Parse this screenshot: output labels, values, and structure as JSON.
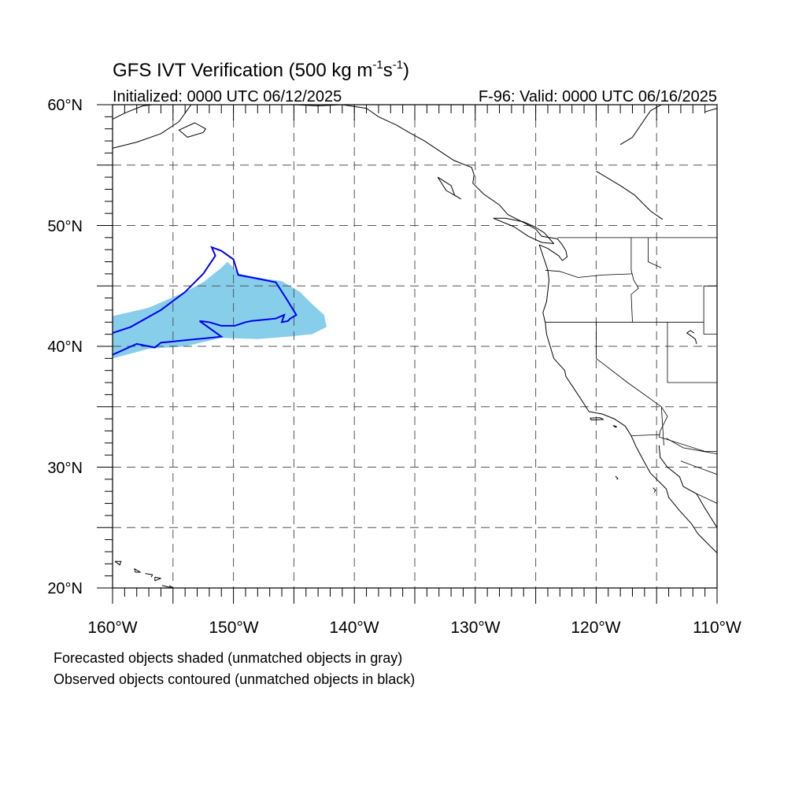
{
  "title": {
    "main": "GFS IVT Verification (500 kg m",
    "sup1": "-1",
    "mid": "s",
    "sup2": "-1",
    "end": ")"
  },
  "initialized": "Initialized: 0000 UTC 06/12/2025",
  "valid": "F-96: Valid: 0000 UTC 06/16/2025",
  "lat_labels": [
    "60°N",
    "50°N",
    "40°N",
    "30°N",
    "20°N"
  ],
  "lon_labels": [
    "160°W",
    "150°W",
    "140°W",
    "130°W",
    "120°W",
    "110°W"
  ],
  "legend": {
    "line1": "Forecasted objects shaded (unmatched objects in gray)",
    "line2": "Observed objects contoured (unmatched objects in black)"
  },
  "map_extent": {
    "lon_min": -160,
    "lon_max": -110,
    "lat_min": 20,
    "lat_max": 60
  },
  "colors": {
    "forecast_fill": "#87ceeb",
    "observed_contour": "#0000ee",
    "coastline": "#000000",
    "grid": "#555555"
  },
  "forecast_object": [
    [
      -160,
      42.5
    ],
    [
      -157,
      43.2
    ],
    [
      -154,
      44.5
    ],
    [
      -152.5,
      45.3
    ],
    [
      -151,
      46.5
    ],
    [
      -150.5,
      47
    ],
    [
      -149.5,
      46
    ],
    [
      -147.5,
      45.6
    ],
    [
      -146,
      45.4
    ],
    [
      -144.5,
      44.5
    ],
    [
      -143.5,
      43.5
    ],
    [
      -142.5,
      42.6
    ],
    [
      -142.3,
      41.6
    ],
    [
      -143.5,
      41
    ],
    [
      -145.5,
      40.8
    ],
    [
      -148,
      40.6
    ],
    [
      -151,
      40.7
    ],
    [
      -154,
      40
    ],
    [
      -157,
      39.8
    ],
    [
      -160,
      39
    ]
  ],
  "observed_object": [
    [
      -160,
      41.1
    ],
    [
      -158.5,
      41.6
    ],
    [
      -156,
      43
    ],
    [
      -154,
      44.5
    ],
    [
      -152.5,
      46
    ],
    [
      -151.5,
      47.5
    ],
    [
      -151.8,
      48.2
    ],
    [
      -151,
      47.9
    ],
    [
      -150,
      47.2
    ],
    [
      -149.6,
      45.9
    ],
    [
      -148,
      45.6
    ],
    [
      -146.5,
      45.3
    ],
    [
      -145.6,
      43.9
    ],
    [
      -144.8,
      42.6
    ],
    [
      -145.3,
      42.3
    ],
    [
      -145.5,
      42.1
    ],
    [
      -146,
      42
    ],
    [
      -145.8,
      42.6
    ],
    [
      -146.5,
      42.3
    ],
    [
      -147.5,
      42.2
    ],
    [
      -148.5,
      42.1
    ],
    [
      -149,
      42
    ],
    [
      -149.9,
      41.7
    ],
    [
      -151,
      41.7
    ],
    [
      -152,
      42
    ],
    [
      -152.8,
      42.1
    ],
    [
      -151,
      40.8
    ],
    [
      -153,
      40.6
    ],
    [
      -154,
      40.5
    ],
    [
      -155,
      40.4
    ],
    [
      -156,
      40.3
    ],
    [
      -156.5,
      39.9
    ],
    [
      -158,
      40.2
    ],
    [
      -160,
      39.3
    ]
  ],
  "coastlines": [
    [
      [
        -160,
        58.8
      ],
      [
        -159,
        59.3
      ],
      [
        -157.5,
        59.9
      ],
      [
        -156.7,
        60
      ]
    ],
    [
      [
        -160,
        56.4
      ],
      [
        -158,
        56.9
      ],
      [
        -156,
        57.6
      ],
      [
        -154.5,
        58.6
      ],
      [
        -154,
        59.3
      ],
      [
        -153.5,
        60
      ]
    ],
    [
      [
        -152.5,
        57.7
      ],
      [
        -153.8,
        57.3
      ],
      [
        -154.5,
        57.9
      ],
      [
        -153.2,
        58.5
      ],
      [
        -152.3,
        58
      ],
      [
        -152.5,
        57.7
      ]
    ],
    [
      [
        -147,
        60
      ],
      [
        -145,
        60
      ],
      [
        -143,
        59.9
      ],
      [
        -141,
        60
      ],
      [
        -139,
        59.7
      ],
      [
        -138,
        59
      ],
      [
        -136.5,
        58.3
      ],
      [
        -135.3,
        57.6
      ],
      [
        -134.2,
        57
      ],
      [
        -133,
        56.2
      ],
      [
        -131.8,
        55.4
      ],
      [
        -130.3,
        54.8
      ],
      [
        -130.1,
        54.2
      ],
      [
        -130.2,
        53.5
      ],
      [
        -129.3,
        52.6
      ],
      [
        -128,
        51.7
      ],
      [
        -127.3,
        50.9
      ],
      [
        -125.9,
        50.2
      ],
      [
        -125,
        49.7
      ],
      [
        -124.5,
        49.1
      ],
      [
        -123.2,
        48.9
      ],
      [
        -122.8,
        48.4
      ],
      [
        -122.5,
        47.9
      ],
      [
        -122.4,
        47.4
      ],
      [
        -122.8,
        47.1
      ],
      [
        -123.1,
        47.5
      ],
      [
        -124,
        48.1
      ],
      [
        -124.7,
        48.4
      ],
      [
        -124.3,
        47.2
      ],
      [
        -124,
        46.3
      ],
      [
        -123.9,
        45.5
      ],
      [
        -124,
        44.6
      ],
      [
        -124.1,
        43.7
      ],
      [
        -124.4,
        42.8
      ],
      [
        -124.2,
        41.9
      ],
      [
        -124.1,
        41
      ],
      [
        -123.8,
        40
      ],
      [
        -123.5,
        39
      ],
      [
        -122.6,
        38
      ],
      [
        -122.5,
        37.5
      ],
      [
        -121.9,
        36.6
      ],
      [
        -121.3,
        35.7
      ],
      [
        -120.6,
        34.6
      ],
      [
        -119.5,
        34.4
      ],
      [
        -118.5,
        34
      ],
      [
        -117.6,
        33.4
      ],
      [
        -117.1,
        32.6
      ],
      [
        -116.7,
        31.7
      ],
      [
        -116,
        30.4
      ],
      [
        -115.5,
        29.5
      ],
      [
        -114.2,
        28.2
      ],
      [
        -114,
        27.5
      ],
      [
        -113.1,
        26.4
      ],
      [
        -112.1,
        25.3
      ],
      [
        -111.6,
        24.5
      ],
      [
        -110.5,
        23.4
      ],
      [
        -110,
        22.9
      ]
    ],
    [
      [
        -133.1,
        54
      ],
      [
        -132,
        53.3
      ],
      [
        -131.7,
        52.5
      ],
      [
        -131.2,
        52.2
      ],
      [
        -132.4,
        52.9
      ],
      [
        -133.1,
        54
      ]
    ],
    [
      [
        -128.5,
        50.6
      ],
      [
        -127.5,
        50.6
      ],
      [
        -126,
        50.3
      ],
      [
        -125.1,
        49.9
      ],
      [
        -124.3,
        49.4
      ],
      [
        -123.5,
        48.5
      ],
      [
        -124.5,
        48.6
      ],
      [
        -125.6,
        49.1
      ],
      [
        -126.8,
        49.9
      ],
      [
        -128.5,
        50.6
      ]
    ],
    [
      [
        -114.8,
        31.8
      ],
      [
        -114.7,
        30.8
      ],
      [
        -114.1,
        30
      ],
      [
        -113.1,
        29.2
      ],
      [
        -112.8,
        28.4
      ],
      [
        -111.7,
        27.8
      ],
      [
        -111,
        26.6
      ],
      [
        -110.5,
        25.8
      ],
      [
        -110,
        25
      ],
      [
        -110,
        24
      ]
    ],
    [
      [
        -120.5,
        34.05
      ],
      [
        -119.7,
        34.1
      ],
      [
        -119.4,
        33.95
      ],
      [
        -120.4,
        33.9
      ],
      [
        -120.5,
        34.05
      ]
    ],
    [
      [
        -118.6,
        33.45
      ],
      [
        -118.3,
        33.35
      ],
      [
        -118.4,
        33.3
      ],
      [
        -118.6,
        33.45
      ]
    ],
    [
      [
        -118.4,
        29.25
      ],
      [
        -118.2,
        29.05
      ],
      [
        -118.3,
        29
      ]
    ],
    [
      [
        -115.3,
        28.3
      ],
      [
        -115.1,
        28.1
      ],
      [
        -115.2,
        27.9
      ]
    ],
    [
      [
        -159.8,
        22.2
      ],
      [
        -159.3,
        22.2
      ],
      [
        -159.4,
        21.9
      ],
      [
        -159.8,
        22.2
      ]
    ],
    [
      [
        -158.2,
        21.6
      ],
      [
        -157.7,
        21.3
      ],
      [
        -158.1,
        21.3
      ],
      [
        -158.2,
        21.6
      ]
    ],
    [
      [
        -157.3,
        21.2
      ],
      [
        -156.7,
        21.1
      ],
      [
        -156.8,
        20.9
      ]
    ],
    [
      [
        -156.5,
        20.9
      ],
      [
        -156,
        20.8
      ],
      [
        -156.5,
        20.6
      ],
      [
        -156.5,
        20.9
      ]
    ],
    [
      [
        -155.9,
        20.2
      ],
      [
        -155,
        20
      ],
      [
        -155.3,
        20.2
      ]
    ],
    [
      [
        -111.7,
        40.2
      ],
      [
        -111.8,
        40.6
      ],
      [
        -112.2,
        40.9
      ],
      [
        -112.5,
        41.1
      ],
      [
        -112.2,
        41.3
      ],
      [
        -111.9,
        41.1
      ]
    ],
    [
      [
        -114.6,
        60
      ],
      [
        -115.5,
        59.5
      ],
      [
        -117,
        57.3
      ],
      [
        -118,
        56.7
      ]
    ],
    [
      [
        -120,
        54.5
      ],
      [
        -118,
        53.3
      ],
      [
        -116.8,
        52.5
      ],
      [
        -115.5,
        51.2
      ],
      [
        -114.5,
        50.5
      ]
    ],
    [
      [
        -110,
        59.7
      ],
      [
        -111,
        59.4
      ]
    ]
  ],
  "boundaries": [
    [
      [
        -123.2,
        49
      ],
      [
        -110,
        49
      ]
    ],
    [
      [
        -124.2,
        46.3
      ],
      [
        -123,
        46.2
      ],
      [
        -121.5,
        45.7
      ],
      [
        -119.5,
        45.9
      ],
      [
        -117,
        46
      ]
    ],
    [
      [
        -117.1,
        49
      ],
      [
        -117.1,
        46.3
      ],
      [
        -116.9,
        45.5
      ],
      [
        -116.5,
        44.8
      ],
      [
        -117.1,
        44.3
      ],
      [
        -117,
        42
      ]
    ],
    [
      [
        -124.2,
        42
      ],
      [
        -111.1,
        42
      ]
    ],
    [
      [
        -120,
        42
      ],
      [
        -120,
        39
      ],
      [
        -117.4,
        37
      ],
      [
        -114.6,
        35
      ]
    ],
    [
      [
        -114.1,
        42
      ],
      [
        -114.1,
        37
      ]
    ],
    [
      [
        -114.1,
        37
      ],
      [
        -110,
        37
      ]
    ],
    [
      [
        -111.1,
        45
      ],
      [
        -110,
        45
      ]
    ],
    [
      [
        -111.1,
        45
      ],
      [
        -111.1,
        41
      ]
    ],
    [
      [
        -111.1,
        41
      ],
      [
        -110,
        41
      ]
    ],
    [
      [
        -114.6,
        35
      ],
      [
        -114.1,
        34.2
      ],
      [
        -114.7,
        33
      ],
      [
        -114.8,
        32.5
      ],
      [
        -111,
        31.3
      ],
      [
        -110,
        31.3
      ]
    ],
    [
      [
        -117.1,
        32.6
      ],
      [
        -114.7,
        32.7
      ]
    ],
    [
      [
        -115.7,
        49
      ],
      [
        -115.7,
        47
      ],
      [
        -114.6,
        46.5
      ]
    ],
    [
      [
        -114.2,
        32.4
      ],
      [
        -112.8,
        31.6
      ],
      [
        -110,
        31.1
      ]
    ],
    [
      [
        -112.1,
        28
      ],
      [
        -110,
        27
      ]
    ],
    [
      [
        -114.6,
        35
      ],
      [
        -114.4,
        31.8
      ]
    ],
    [
      [
        -110,
        29.4
      ],
      [
        -113,
        30.5
      ]
    ]
  ]
}
